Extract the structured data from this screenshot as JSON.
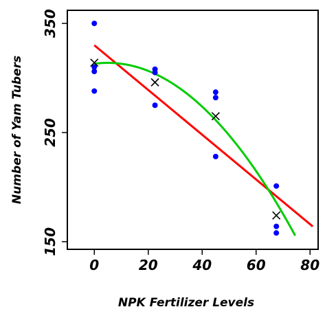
{
  "chart_data": {
    "type": "scatter",
    "title": "",
    "xlabel": "NPK Fertilizer Levels",
    "ylabel": "Number of Yam Tubers",
    "xlim": [
      -10,
      83
    ],
    "ylim": [
      143,
      362
    ],
    "x_ticks": [
      0,
      20,
      40,
      60,
      80
    ],
    "y_ticks": [
      150,
      250,
      350
    ],
    "x_tick_labels": [
      "0",
      "20",
      "40",
      "60",
      "80"
    ],
    "y_tick_labels": [
      "150",
      "250",
      "350"
    ],
    "grid": false,
    "legend": "none",
    "colors": {
      "points": "#0000ff",
      "means": "#000000",
      "linear_fit": "#ff0000",
      "quadratic_fit": "#00cc00"
    },
    "points": [
      {
        "x": 0,
        "y": 350
      },
      {
        "x": 0,
        "y": 310
      },
      {
        "x": 0,
        "y": 306
      },
      {
        "x": 0,
        "y": 288
      },
      {
        "x": 22.5,
        "y": 308
      },
      {
        "x": 22.5,
        "y": 305
      },
      {
        "x": 22.5,
        "y": 275
      },
      {
        "x": 45,
        "y": 287
      },
      {
        "x": 45,
        "y": 282
      },
      {
        "x": 45,
        "y": 228
      },
      {
        "x": 67.5,
        "y": 201
      },
      {
        "x": 67.5,
        "y": 164
      },
      {
        "x": 67.5,
        "y": 158
      }
    ],
    "means": [
      {
        "x": 0,
        "y": 314
      },
      {
        "x": 22.5,
        "y": 296
      },
      {
        "x": 45,
        "y": 265
      },
      {
        "x": 67.5,
        "y": 174
      }
    ],
    "linear_fit": {
      "intercept": 330,
      "slope": -2.05,
      "x_range": [
        0,
        81
      ]
    },
    "quadratic_fit": {
      "a": 313,
      "b": 0.33,
      "c": -0.0328,
      "x_range": [
        0,
        74.5
      ]
    }
  }
}
